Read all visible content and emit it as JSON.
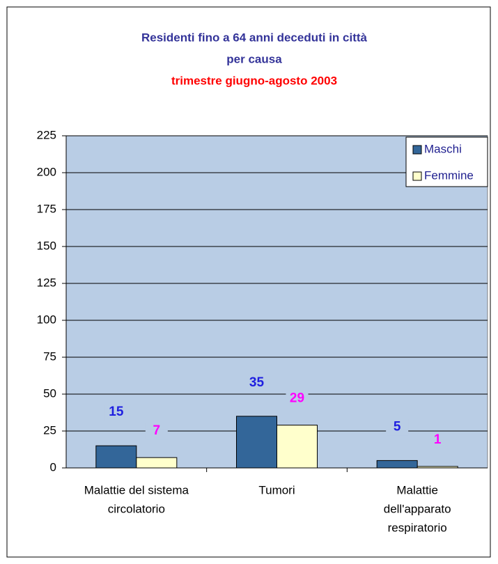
{
  "chart_data": {
    "type": "bar",
    "title": [
      "Residenti fino a 64 anni deceduti  in città",
      "per causa"
    ],
    "subtitle": "trimestre giugno-agosto 2003",
    "categories": [
      [
        "Malattie del sistema",
        "circolatorio"
      ],
      [
        "Tumori"
      ],
      [
        "Malattie",
        "dell'apparato",
        "respiratorio"
      ]
    ],
    "series": [
      {
        "name": "Maschi",
        "color": "#336699",
        "label_color": "#1f1fe0",
        "values": [
          15,
          35,
          5
        ]
      },
      {
        "name": "Femmine",
        "color": "#ffffcc",
        "label_color": "#ff00ff",
        "values": [
          7,
          29,
          1
        ]
      }
    ],
    "ylim": [
      0,
      225
    ],
    "yticks": [
      0,
      25,
      50,
      75,
      100,
      125,
      150,
      175,
      200,
      225
    ],
    "grid": true,
    "legend": "top-right",
    "plot_background": "#b9cde5"
  }
}
